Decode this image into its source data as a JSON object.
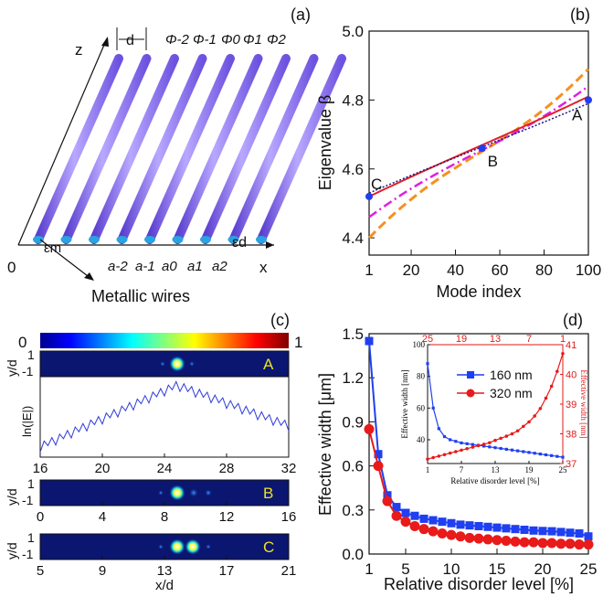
{
  "panel_labels": {
    "a": "(a)",
    "b": "(b)",
    "c": "(c)",
    "d": "(d)"
  },
  "panel_a": {
    "axis_z": "z",
    "axis_x": "x",
    "origin": "0",
    "spacing_label": "d",
    "phi_labels": [
      "Φ-2",
      "Φ-1",
      "Φ0",
      "Φ1",
      "Φ2"
    ],
    "a_labels": [
      "a-2",
      "a-1",
      "a0",
      "a1",
      "a2"
    ],
    "eps_m": "εm",
    "eps_d": "εd",
    "caption": "Metallic wires",
    "colors": {
      "wire": "#8a6cf0",
      "wire_end": "#2aa3e0"
    }
  },
  "chart_data": [
    {
      "type": "line",
      "panel": "b",
      "xlabel": "Mode index",
      "ylabel": "Eigenvalue β",
      "xlim": [
        1,
        100
      ],
      "ylim": [
        4.35,
        5.0
      ],
      "xticks": [
        "1",
        "20",
        "40",
        "60",
        "80",
        "100"
      ],
      "yticks": [
        "4.4",
        "4.6",
        "4.8",
        "5.0"
      ],
      "series": [
        {
          "x": [
            1,
            100
          ],
          "y": [
            4.4,
            4.89
          ],
          "color": "#f5911e",
          "style": "dashed"
        },
        {
          "x": [
            1,
            100
          ],
          "y": [
            4.46,
            4.84
          ],
          "color": "#e020e0",
          "style": "dashdot"
        },
        {
          "x": [
            1,
            100
          ],
          "y": [
            4.52,
            4.81
          ],
          "color": "#e0202a",
          "style": "solid"
        },
        {
          "x": [
            1,
            100
          ],
          "y": [
            4.53,
            4.79
          ],
          "color": "#1a1a80",
          "style": "dotted"
        }
      ],
      "points": [
        {
          "label": "A",
          "x": 100,
          "y": 4.8
        },
        {
          "label": "B",
          "x": 52,
          "y": 4.66
        },
        {
          "label": "C",
          "x": 1,
          "y": 4.52
        }
      ]
    },
    {
      "type": "heatmap",
      "panel": "c",
      "colorbar_ticks": [
        "0",
        "1"
      ],
      "profile_ylabel": "ln(|E|)",
      "mode_ylabel": "y/d",
      "mode_yticks": [
        "1",
        "-1"
      ],
      "xlabel": "x/d",
      "modes": [
        {
          "label": "A",
          "xticks": [
            "16",
            "20",
            "24",
            "28",
            "32"
          ]
        },
        {
          "label": "B",
          "xticks": [
            "0",
            "4",
            "8",
            "12",
            "16"
          ]
        },
        {
          "label": "C",
          "xticks": [
            "5",
            "9",
            "13",
            "17",
            "21"
          ]
        }
      ]
    },
    {
      "type": "scatter",
      "panel": "d",
      "xlabel": "Relative disorder level [%]",
      "ylabel": "Effective width [μm]",
      "xlim": [
        1,
        25
      ],
      "ylim": [
        0,
        1.5
      ],
      "xticks": [
        "1",
        "5",
        "10",
        "15",
        "20",
        "25"
      ],
      "yticks": [
        "0.0",
        "0.3",
        "0.6",
        "0.9",
        "1.2",
        "1.5"
      ],
      "series": [
        {
          "color": "#1f3ff0",
          "marker": "square",
          "x": [
            1,
            2,
            3,
            4,
            5,
            6,
            7,
            8,
            9,
            10,
            11,
            12,
            13,
            14,
            15,
            16,
            17,
            18,
            19,
            20,
            21,
            22,
            23,
            24,
            25
          ],
          "y": [
            1.45,
            0.68,
            0.4,
            0.32,
            0.28,
            0.26,
            0.24,
            0.23,
            0.22,
            0.21,
            0.2,
            0.195,
            0.19,
            0.185,
            0.18,
            0.175,
            0.17,
            0.165,
            0.16,
            0.157,
            0.155,
            0.15,
            0.145,
            0.14,
            0.12
          ]
        },
        {
          "color": "#e81a1a",
          "marker": "circle",
          "x": [
            1,
            2,
            3,
            4,
            5,
            6,
            7,
            8,
            9,
            10,
            11,
            12,
            13,
            14,
            15,
            16,
            17,
            18,
            19,
            20,
            21,
            22,
            23,
            24,
            25
          ],
          "y": [
            0.85,
            0.6,
            0.36,
            0.26,
            0.22,
            0.19,
            0.17,
            0.155,
            0.14,
            0.13,
            0.12,
            0.11,
            0.105,
            0.1,
            0.095,
            0.09,
            0.085,
            0.08,
            0.08,
            0.075,
            0.075,
            0.07,
            0.07,
            0.065,
            0.065
          ]
        }
      ],
      "inset": {
        "xlabel": "Relative disorder level [%]",
        "ylabel_left": "Effective width [nm]",
        "ylabel_right": "Effective width [nm]",
        "xticks": [
          "1",
          "7",
          "13",
          "19",
          "25"
        ],
        "xticks_top": [
          "25",
          "19",
          "13",
          "7",
          "1"
        ],
        "yticks_left": [
          "40",
          "60",
          "80",
          "100"
        ],
        "yticks_right": [
          "37",
          "38",
          "39",
          "40",
          "41"
        ],
        "ylim_left": [
          25,
          100
        ],
        "ylim_right": [
          37,
          41
        ],
        "legend": [
          {
            "label": "160 nm",
            "color": "#1f3ff0",
            "marker": "square"
          },
          {
            "label": "320 nm",
            "color": "#e81a1a",
            "marker": "circle"
          }
        ],
        "series_blue": {
          "x": [
            1,
            2,
            3,
            4,
            5,
            6,
            7,
            8,
            9,
            10,
            11,
            12,
            13,
            14,
            15,
            16,
            17,
            18,
            19,
            20,
            21,
            22,
            23,
            24,
            25
          ],
          "y": [
            88,
            60,
            47,
            42,
            40,
            39,
            38,
            37.5,
            37,
            36.5,
            36,
            35.5,
            35,
            34.5,
            34,
            33.5,
            33,
            32.5,
            32,
            31.5,
            31,
            30.5,
            30,
            29.5,
            29
          ]
        },
        "series_red": {
          "x": [
            1,
            2,
            3,
            4,
            5,
            6,
            7,
            8,
            9,
            10,
            11,
            12,
            13,
            14,
            15,
            16,
            17,
            18,
            19,
            20,
            21,
            22,
            23,
            24,
            25
          ],
          "y": [
            37.15,
            37.2,
            37.25,
            37.3,
            37.35,
            37.4,
            37.45,
            37.5,
            37.55,
            37.6,
            37.65,
            37.7,
            37.78,
            37.85,
            37.92,
            38.0,
            38.1,
            38.25,
            38.4,
            38.6,
            38.85,
            39.2,
            39.6,
            40.1,
            40.7
          ]
        }
      }
    }
  ]
}
